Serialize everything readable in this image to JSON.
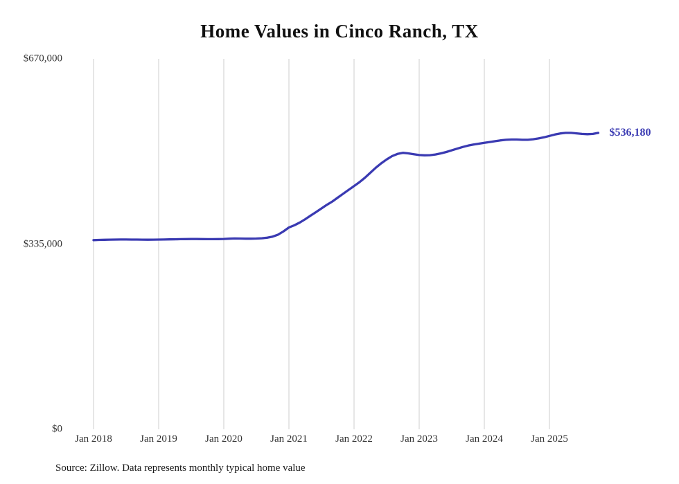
{
  "title": "Home Values in Cinco Ranch, TX",
  "source": "Source: Zillow. Data represents monthly typical home value",
  "colors": {
    "line": "#3a3ab2",
    "annotation": "#3a3ab2",
    "grid": "#cccccc",
    "text": "#333333"
  },
  "chart_data": {
    "type": "line",
    "title": "Home Values in Cinco Ranch, TX",
    "xlabel": "",
    "ylabel": "",
    "ylim": [
      0,
      670000
    ],
    "grid": "vertical-only",
    "legend": "none",
    "x_unit": "month",
    "x_start": "Jan 2018",
    "x_end": "Oct 2025",
    "x_tick_labels": [
      "Jan 2018",
      "Jan 2019",
      "Jan 2020",
      "Jan 2021",
      "Jan 2022",
      "Jan 2023",
      "Jan 2024",
      "Jan 2025"
    ],
    "y_ticks": [
      {
        "label": "$0",
        "value": 0
      },
      {
        "label": "$335,000",
        "value": 335000
      },
      {
        "label": "$670,000",
        "value": 670000
      }
    ],
    "last_value_label": "$536,180",
    "last_value": 536180,
    "values": [
      342200,
      342500,
      342800,
      343000,
      343200,
      343300,
      343300,
      343200,
      343100,
      343000,
      342900,
      343000,
      343100,
      343300,
      343500,
      343700,
      343900,
      344000,
      344100,
      344100,
      344000,
      343900,
      343900,
      344000,
      344300,
      344800,
      345200,
      345000,
      344800,
      344800,
      345000,
      345500,
      346500,
      348500,
      352000,
      358000,
      365000,
      369000,
      374000,
      380000,
      386500,
      393000,
      399500,
      406000,
      412000,
      419000,
      426000,
      433000,
      440000,
      447000,
      455000,
      464000,
      473000,
      481000,
      488000,
      494000,
      498000,
      500000,
      499000,
      497500,
      496100,
      495600,
      495800,
      497100,
      499100,
      501600,
      504600,
      507600,
      510600,
      513100,
      515100,
      516600,
      518100,
      519600,
      521100,
      522600,
      523600,
      524100,
      524100,
      523600,
      523600,
      524600,
      526100,
      528100,
      530600,
      533100,
      535100,
      536100,
      536100,
      535300,
      534300,
      533800,
      534300,
      536180
    ]
  }
}
